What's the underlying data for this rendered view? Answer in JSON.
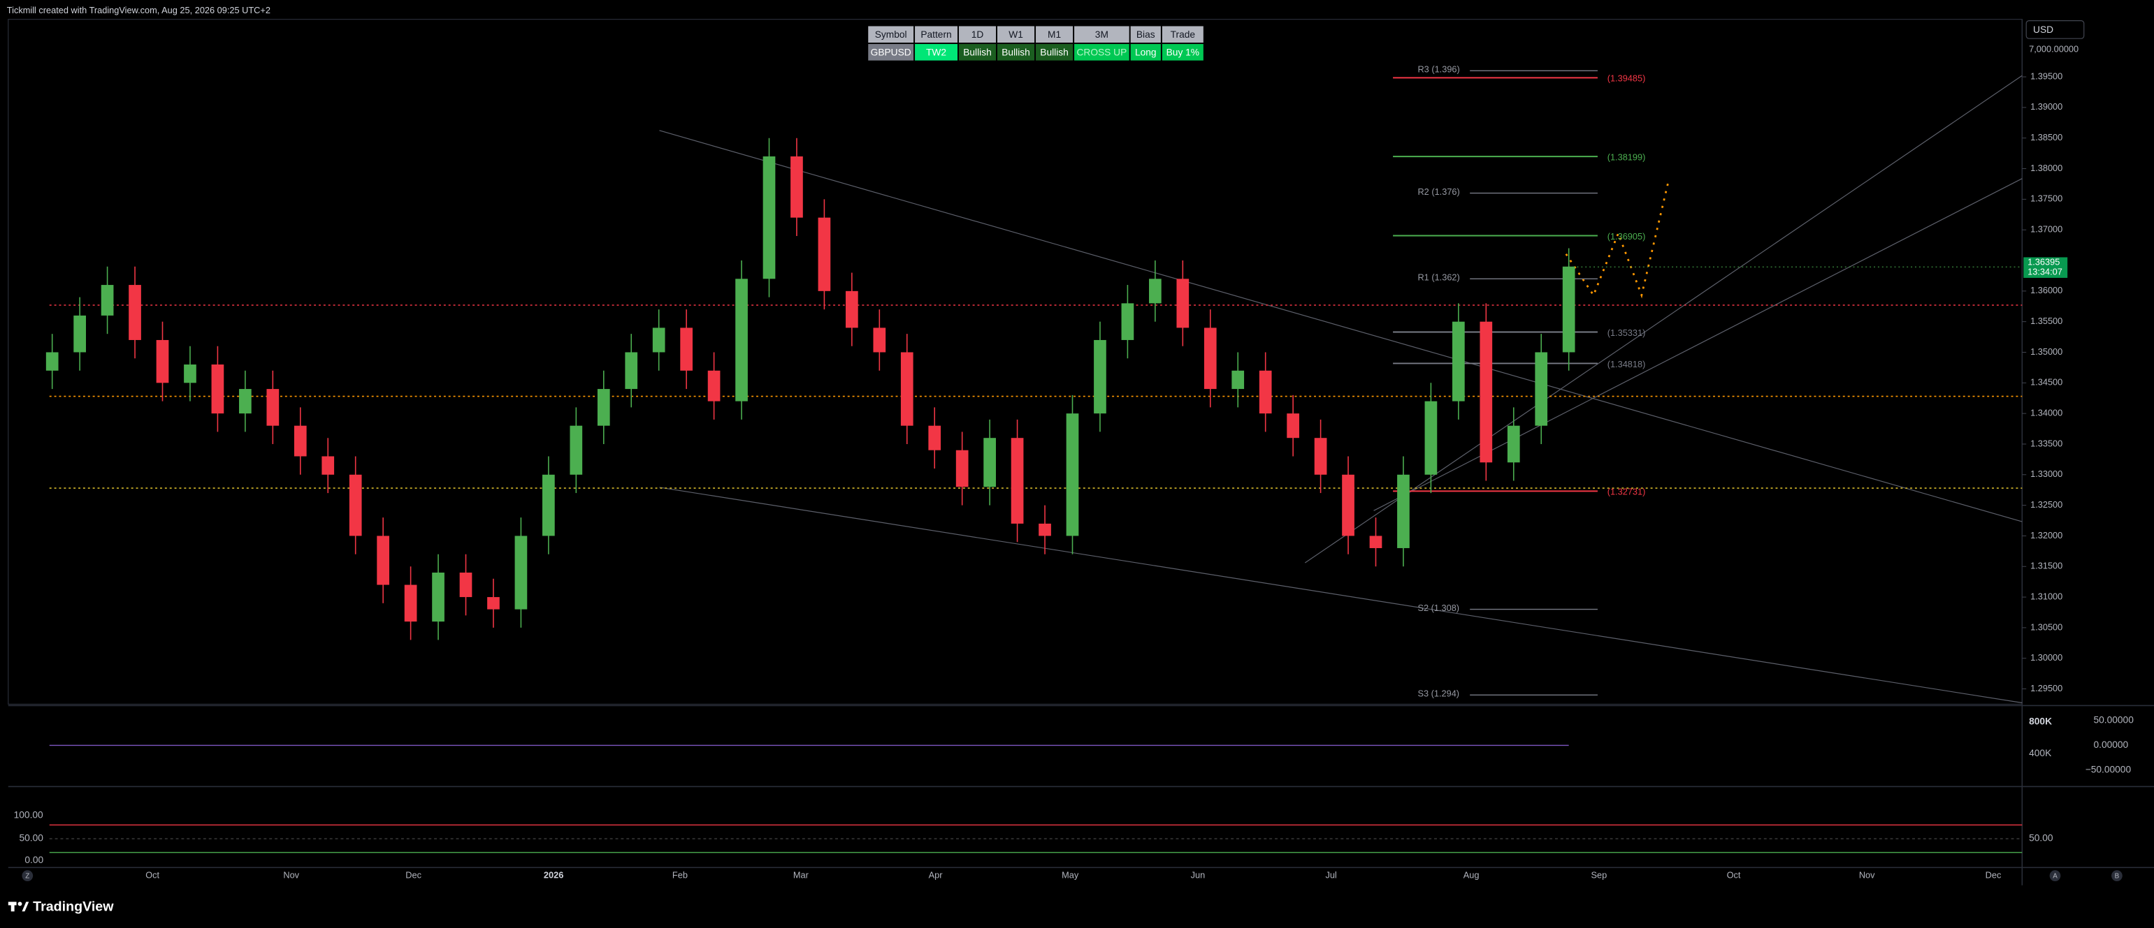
{
  "header": {
    "caption": "Tickmill created with TradingView.com, Aug 25, 2026 09:25 UTC+2",
    "currency": "USD",
    "scale_label": "7,000.00000"
  },
  "table": {
    "headers": [
      "Symbol",
      "Pattern",
      "1D",
      "W1",
      "M1",
      "3M",
      "Bias",
      "Trade"
    ],
    "row": [
      "GBPUSD",
      "TW2",
      "Bullish",
      "Bullish",
      "Bullish",
      "CROSS UP",
      "Long",
      "Buy 1%"
    ]
  },
  "chart_data": {
    "type": "candlestick",
    "up_color": "#4caf50",
    "down_color": "#f23645",
    "open": [
      1.347,
      1.35,
      1.356,
      1.361,
      1.352,
      1.345,
      1.348,
      1.34,
      1.344,
      1.338,
      1.333,
      1.33,
      1.32,
      1.312,
      1.306,
      1.314,
      1.31,
      1.308,
      1.32,
      1.33,
      1.338,
      1.344,
      1.35,
      1.354,
      1.347,
      1.342,
      1.362,
      1.382,
      1.372,
      1.36,
      1.354,
      1.35,
      1.338,
      1.334,
      1.328,
      1.336,
      1.322,
      1.32,
      1.34,
      1.352,
      1.358,
      1.362,
      1.354,
      1.344,
      1.347,
      1.34,
      1.336,
      1.33,
      1.32,
      1.318,
      1.33,
      1.342,
      1.355,
      1.332,
      1.338,
      1.35
    ],
    "high": [
      1.353,
      1.359,
      1.364,
      1.364,
      1.355,
      1.351,
      1.351,
      1.347,
      1.347,
      1.341,
      1.336,
      1.333,
      1.323,
      1.315,
      1.317,
      1.317,
      1.313,
      1.323,
      1.333,
      1.341,
      1.347,
      1.353,
      1.357,
      1.357,
      1.35,
      1.365,
      1.385,
      1.385,
      1.375,
      1.363,
      1.357,
      1.353,
      1.341,
      1.337,
      1.339,
      1.339,
      1.325,
      1.343,
      1.355,
      1.361,
      1.365,
      1.365,
      1.357,
      1.35,
      1.35,
      1.343,
      1.339,
      1.333,
      1.323,
      1.333,
      1.345,
      1.358,
      1.358,
      1.341,
      1.353,
      1.367
    ],
    "low": [
      1.344,
      1.347,
      1.353,
      1.349,
      1.342,
      1.342,
      1.337,
      1.337,
      1.335,
      1.33,
      1.327,
      1.317,
      1.309,
      1.303,
      1.303,
      1.307,
      1.305,
      1.305,
      1.317,
      1.327,
      1.335,
      1.341,
      1.347,
      1.344,
      1.339,
      1.339,
      1.359,
      1.369,
      1.357,
      1.351,
      1.347,
      1.335,
      1.331,
      1.325,
      1.325,
      1.319,
      1.317,
      1.317,
      1.337,
      1.349,
      1.355,
      1.351,
      1.341,
      1.341,
      1.337,
      1.333,
      1.327,
      1.317,
      1.315,
      1.315,
      1.327,
      1.339,
      1.329,
      1.329,
      1.335,
      1.347
    ],
    "close": [
      1.35,
      1.356,
      1.361,
      1.352,
      1.345,
      1.348,
      1.34,
      1.344,
      1.338,
      1.333,
      1.33,
      1.32,
      1.312,
      1.306,
      1.314,
      1.31,
      1.308,
      1.32,
      1.33,
      1.338,
      1.344,
      1.35,
      1.354,
      1.347,
      1.342,
      1.362,
      1.382,
      1.372,
      1.36,
      1.354,
      1.35,
      1.338,
      1.334,
      1.328,
      1.336,
      1.322,
      1.32,
      1.34,
      1.352,
      1.358,
      1.362,
      1.354,
      1.344,
      1.347,
      1.34,
      1.336,
      1.33,
      1.32,
      1.318,
      1.33,
      1.342,
      1.355,
      1.332,
      1.338,
      1.35,
      1.364
    ],
    "ylim": [
      1.2925,
      1.4044
    ],
    "yticks": [
      {
        "value": 1.395,
        "label": "1.39500"
      },
      {
        "value": 1.39,
        "label": "1.39000"
      },
      {
        "value": 1.385,
        "label": "1.38500"
      },
      {
        "value": 1.38,
        "label": "1.38000"
      },
      {
        "value": 1.375,
        "label": "1.37500"
      },
      {
        "value": 1.37,
        "label": "1.37000"
      },
      {
        "value": 1.36,
        "label": "1.36000"
      },
      {
        "value": 1.355,
        "label": "1.35500"
      },
      {
        "value": 1.35,
        "label": "1.35000"
      },
      {
        "value": 1.345,
        "label": "1.34500"
      },
      {
        "value": 1.34,
        "label": "1.34000"
      },
      {
        "value": 1.335,
        "label": "1.33500"
      },
      {
        "value": 1.33,
        "label": "1.33000"
      },
      {
        "value": 1.325,
        "label": "1.32500"
      },
      {
        "value": 1.32,
        "label": "1.32000"
      },
      {
        "value": 1.315,
        "label": "1.31500"
      },
      {
        "value": 1.31,
        "label": "1.31000"
      },
      {
        "value": 1.305,
        "label": "1.30500"
      },
      {
        "value": 1.3,
        "label": "1.30000"
      },
      {
        "value": 1.295,
        "label": "1.29500"
      }
    ],
    "last_price": {
      "value": 1.36395,
      "label": "1.36395"
    },
    "countdown": "13:34:07",
    "pivots": [
      {
        "label": "R3 (1.396)",
        "value": 1.396
      },
      {
        "label": "R2 (1.376)",
        "value": 1.376
      },
      {
        "label": "R1 (1.362)",
        "value": 1.362
      },
      {
        "label": "S2 (1.308)",
        "value": 1.308
      },
      {
        "label": "S3 (1.294)",
        "value": 1.294
      }
    ],
    "levels": [
      {
        "label": "(1.39485)",
        "value": 1.39485,
        "color": "#f23645"
      },
      {
        "label": "(1.38199)",
        "value": 1.38199,
        "color": "#4caf50"
      },
      {
        "label": "(1.36905)",
        "value": 1.36905,
        "color": "#4caf50"
      },
      {
        "label": "(1.35331)",
        "value": 1.35331,
        "color": "#787b86"
      },
      {
        "label": "(1.34818)",
        "value": 1.34818,
        "color": "#787b86"
      },
      {
        "label": "(1.32731)",
        "value": 1.32731,
        "color": "#f23645"
      }
    ],
    "hlines": [
      {
        "value": 1.3577,
        "color": "#f23645"
      },
      {
        "value": 1.3428,
        "color": "#ff9800"
      },
      {
        "value": 1.3278,
        "color": "#d4b82a"
      }
    ],
    "xticks": [
      "Oct",
      "Nov",
      "Dec",
      "2026",
      "Feb",
      "Mar",
      "Apr",
      "May",
      "Jun",
      "Jul",
      "Aug",
      "Sep",
      "Oct",
      "Nov",
      "Dec"
    ]
  },
  "volume_pane": {
    "labels": [
      "800K",
      "400K"
    ],
    "osc_labels": [
      "50.00000",
      "0.00000",
      "−50.00000"
    ]
  },
  "stoch_pane": {
    "labels": [
      "100.00",
      "50.00",
      "0.00"
    ],
    "right_label": "50.00"
  },
  "nav": {
    "left": "Z",
    "right": [
      "A",
      "B"
    ]
  },
  "footer": {
    "brand": "TradingView"
  }
}
